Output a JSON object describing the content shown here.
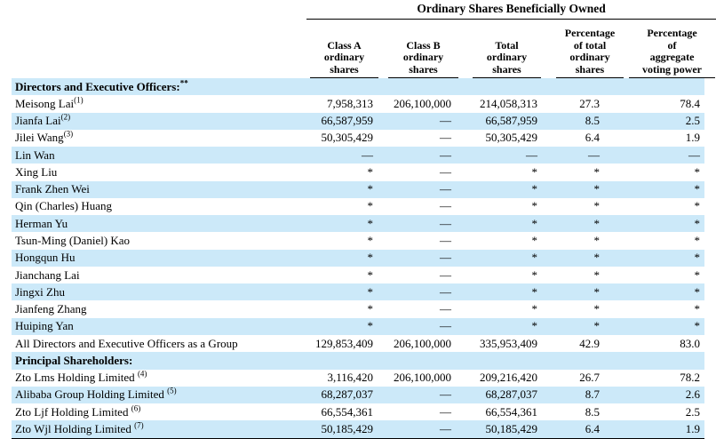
{
  "table": {
    "title": "Ordinary Shares Beneficially Owned",
    "colors": {
      "stripe": "#cce9f9",
      "rule": "#000000",
      "text": "#000000"
    },
    "columns": [
      {
        "id": "class-a",
        "lines": [
          "Class A",
          "ordinary",
          "shares"
        ]
      },
      {
        "id": "class-b",
        "lines": [
          "Class B",
          "ordinary",
          "shares"
        ]
      },
      {
        "id": "total",
        "lines": [
          "Total",
          "ordinary",
          "shares"
        ]
      },
      {
        "id": "pct-total",
        "lines": [
          "Percentage",
          "of total",
          "ordinary",
          "shares"
        ]
      },
      {
        "id": "pct-voting",
        "lines": [
          "Percentage",
          "of",
          "aggregate",
          "voting power"
        ]
      }
    ],
    "rows": [
      {
        "type": "section",
        "label": "Directors and Executive Officers:",
        "sup": "**",
        "sup_gap": false,
        "striped": true,
        "values": [
          "",
          "",
          "",
          "",
          ""
        ]
      },
      {
        "type": "data",
        "label": "Meisong Lai",
        "sup": "(1)",
        "sup_gap": false,
        "striped": false,
        "values": [
          "7,958,313",
          "206,100,000",
          "214,058,313",
          "27.3",
          "78.4"
        ]
      },
      {
        "type": "data",
        "label": "Jianfa Lai",
        "sup": "(2)",
        "sup_gap": false,
        "striped": true,
        "values": [
          "66,587,959",
          "—",
          "66,587,959",
          "8.5",
          "2.5"
        ]
      },
      {
        "type": "data",
        "label": "Jilei Wang",
        "sup": "(3)",
        "sup_gap": false,
        "striped": false,
        "values": [
          "50,305,429",
          "—",
          "50,305,429",
          "6.4",
          "1.9"
        ]
      },
      {
        "type": "data",
        "label": "Lin Wan",
        "sup": "",
        "sup_gap": false,
        "striped": true,
        "values": [
          "—",
          "—",
          "—",
          "—",
          "—"
        ]
      },
      {
        "type": "data",
        "label": "Xing Liu",
        "sup": "",
        "sup_gap": false,
        "striped": false,
        "values": [
          "*",
          "—",
          "*",
          "*",
          "*"
        ]
      },
      {
        "type": "data",
        "label": "Frank Zhen Wei",
        "sup": "",
        "sup_gap": false,
        "striped": true,
        "values": [
          "*",
          "—",
          "*",
          "*",
          "*"
        ]
      },
      {
        "type": "data",
        "label": "Qin (Charles) Huang",
        "sup": "",
        "sup_gap": false,
        "striped": false,
        "values": [
          "*",
          "—",
          "*",
          "*",
          "*"
        ]
      },
      {
        "type": "data",
        "label": "Herman Yu",
        "sup": "",
        "sup_gap": false,
        "striped": true,
        "values": [
          "*",
          "—",
          "*",
          "*",
          "*"
        ]
      },
      {
        "type": "data",
        "label": "Tsun-Ming (Daniel) Kao",
        "sup": "",
        "sup_gap": false,
        "striped": false,
        "values": [
          "*",
          "—",
          "*",
          "*",
          "*"
        ]
      },
      {
        "type": "data",
        "label": "Hongqun Hu",
        "sup": "",
        "sup_gap": false,
        "striped": true,
        "values": [
          "*",
          "—",
          "*",
          "*",
          "*"
        ]
      },
      {
        "type": "data",
        "label": "Jianchang Lai",
        "sup": "",
        "sup_gap": false,
        "striped": false,
        "values": [
          "*",
          "—",
          "*",
          "*",
          "*"
        ]
      },
      {
        "type": "data",
        "label": "Jingxi Zhu",
        "sup": "",
        "sup_gap": false,
        "striped": true,
        "values": [
          "*",
          "—",
          "*",
          "*",
          "*"
        ]
      },
      {
        "type": "data",
        "label": "Jianfeng Zhang",
        "sup": "",
        "sup_gap": false,
        "striped": false,
        "values": [
          "*",
          "—",
          "*",
          "*",
          "*"
        ]
      },
      {
        "type": "data",
        "label": "Huiping Yan",
        "sup": "",
        "sup_gap": false,
        "striped": true,
        "values": [
          "*",
          "—",
          "*",
          "*",
          "*"
        ]
      },
      {
        "type": "data",
        "label": "All Directors and Executive Officers as a Group",
        "sup": "",
        "sup_gap": false,
        "striped": false,
        "values": [
          "129,853,409",
          "206,100,000",
          "335,953,409",
          "42.9",
          "83.0"
        ]
      },
      {
        "type": "section",
        "label": "Principal Shareholders:",
        "sup": "",
        "sup_gap": false,
        "striped": true,
        "values": [
          "",
          "",
          "",
          "",
          ""
        ]
      },
      {
        "type": "data",
        "label": "Zto Lms Holding Limited",
        "sup": "(4)",
        "sup_gap": true,
        "striped": false,
        "values": [
          "3,116,420",
          "206,100,000",
          "209,216,420",
          "26.7",
          "78.2"
        ]
      },
      {
        "type": "data",
        "label": "Alibaba Group Holding Limited",
        "sup": "(5)",
        "sup_gap": true,
        "striped": true,
        "values": [
          "68,287,037",
          "—",
          "68,287,037",
          "8.7",
          "2.6"
        ]
      },
      {
        "type": "data",
        "label": "Zto Ljf Holding Limited",
        "sup": "(6)",
        "sup_gap": true,
        "striped": false,
        "values": [
          "66,554,361",
          "—",
          "66,554,361",
          "8.5",
          "2.5"
        ]
      },
      {
        "type": "data",
        "label": "Zto Wjl Holding Limited",
        "sup": "(7)",
        "sup_gap": true,
        "striped": true,
        "values": [
          "50,185,429",
          "—",
          "50,185,429",
          "6.4",
          "1.9"
        ]
      }
    ]
  }
}
